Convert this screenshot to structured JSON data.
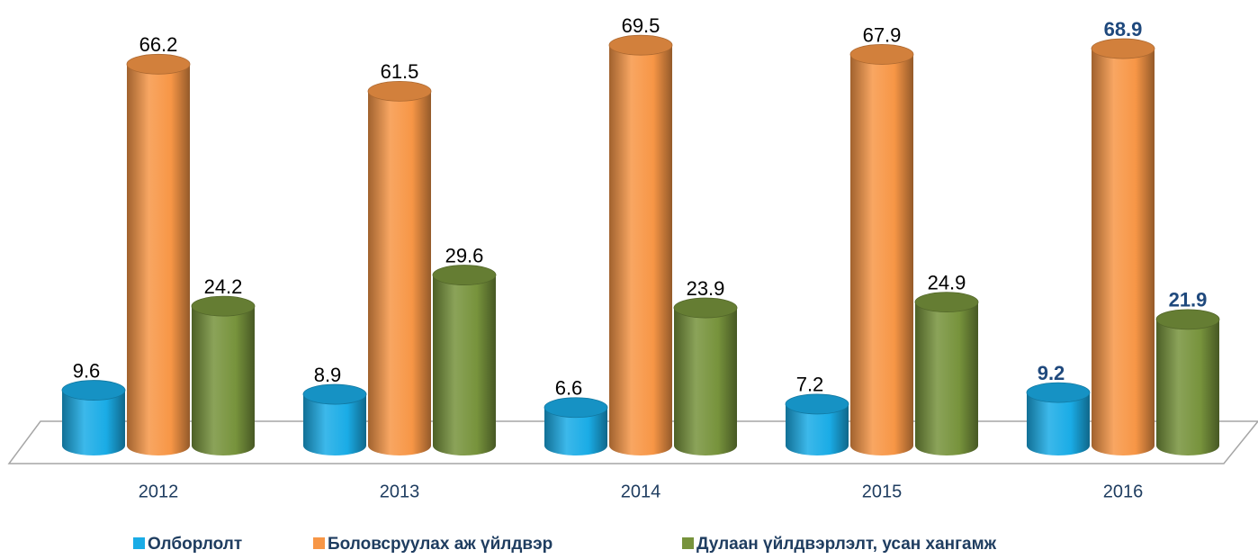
{
  "chart_data": {
    "type": "bar3d",
    "categories": [
      "2012",
      "2013",
      "2014",
      "2015",
      "2016"
    ],
    "series": [
      {
        "name": "Олборлолт",
        "color": "#1aace6",
        "values": [
          9.6,
          8.9,
          6.6,
          7.2,
          9.2
        ]
      },
      {
        "name": "Боловсруулах аж үйлдвэр",
        "color": "#f79646",
        "values": [
          66.2,
          61.5,
          69.5,
          67.9,
          68.9
        ]
      },
      {
        "name": "Дулаан үйлдвэрлэлт, усан хангамж",
        "color": "#77933c",
        "values": [
          24.2,
          29.6,
          23.9,
          24.9,
          21.9
        ]
      }
    ],
    "highlight": {
      "category_index": 4,
      "color": "#1f497d"
    }
  }
}
